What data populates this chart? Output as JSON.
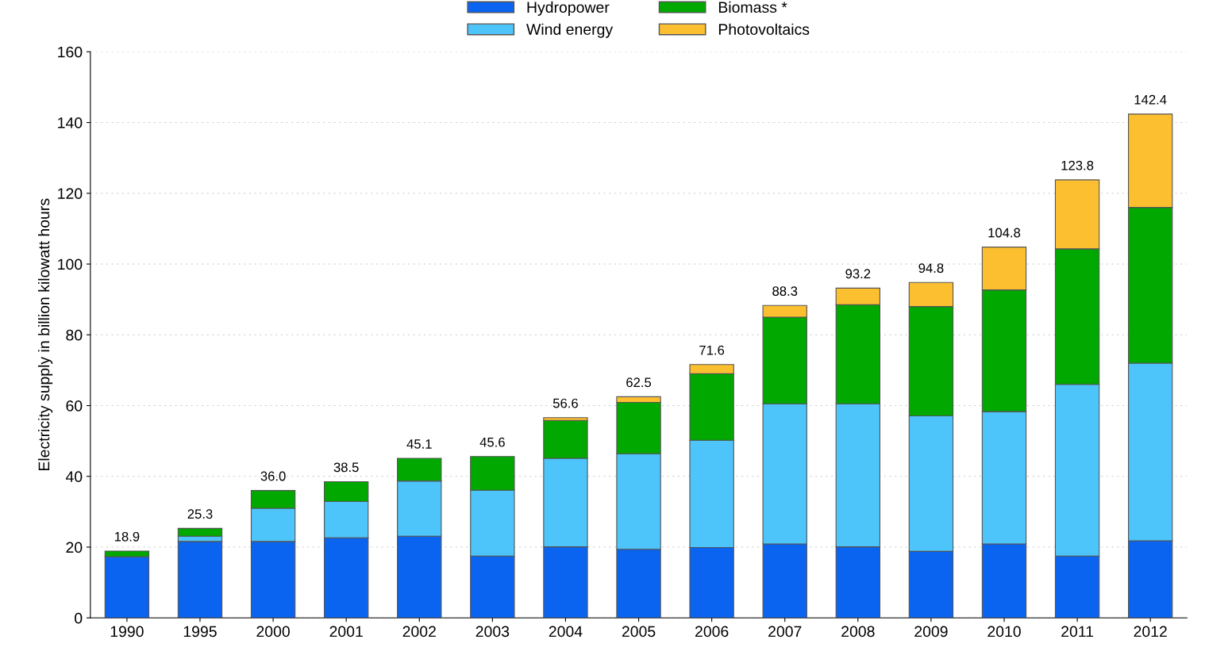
{
  "chart_data": {
    "type": "bar",
    "stacked": true,
    "ylabel": "Electricity supply in billion kilowatt hours",
    "categories": [
      "1990",
      "1995",
      "2000",
      "2001",
      "2002",
      "2003",
      "2004",
      "2005",
      "2006",
      "2007",
      "2008",
      "2009",
      "2010",
      "2011",
      "2012"
    ],
    "series": [
      {
        "name": "Hydropower",
        "color": "#0a64f0",
        "values": [
          17.3,
          21.6,
          21.6,
          22.6,
          23.1,
          17.5,
          20.1,
          19.4,
          19.9,
          20.9,
          20.1,
          18.8,
          20.9,
          17.5,
          21.8
        ]
      },
      {
        "name": "Wind energy",
        "color": "#4dc4fa",
        "values": [
          null,
          1.5,
          9.4,
          10.3,
          15.6,
          18.6,
          25.0,
          27.0,
          30.3,
          39.6,
          40.4,
          38.3,
          37.4,
          48.5,
          50.2
        ]
      },
      {
        "name": "Biomass *",
        "color": "#00a800",
        "values": [
          1.6,
          2.2,
          5.0,
          5.6,
          6.4,
          9.5,
          10.7,
          14.5,
          18.8,
          24.5,
          28.0,
          30.9,
          34.4,
          38.3,
          44.0
        ]
      },
      {
        "name": "Photovoltaics",
        "color": "#fbbf30",
        "values": [
          null,
          null,
          null,
          null,
          null,
          null,
          0.8,
          1.6,
          2.6,
          3.3,
          4.7,
          6.8,
          12.1,
          19.5,
          26.4
        ]
      }
    ],
    "totals": [
      "18.9",
      "25.3",
      "36.0",
      "38.5",
      "45.1",
      "45.6",
      "56.6",
      "62.5",
      "71.6",
      "88.3",
      "93.2",
      "94.8",
      "104.8",
      "123.8",
      "142.4"
    ],
    "ylim": [
      0,
      160
    ],
    "yticks": [
      0,
      20,
      40,
      60,
      80,
      100,
      120,
      140,
      160
    ],
    "grid": "y",
    "legend": "top"
  }
}
